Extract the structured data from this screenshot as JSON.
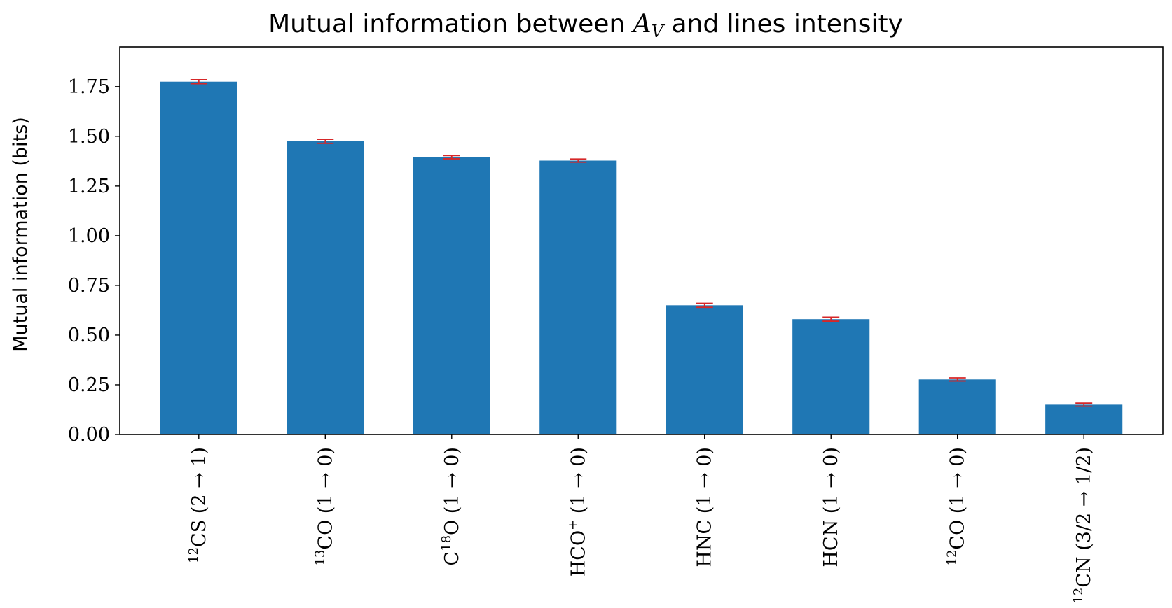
{
  "chart_data": {
    "type": "bar",
    "title": "Mutual information between A_V and lines intensity",
    "title_parts": {
      "before": "Mutual information between ",
      "symbol": "A",
      "subscript": "V",
      "after": " and lines intensity"
    },
    "xlabel": "",
    "ylabel": "Mutual information (bits)",
    "ylim": [
      0,
      1.95
    ],
    "yticks": [
      "0.00",
      "0.25",
      "0.50",
      "0.75",
      "1.00",
      "1.25",
      "1.50",
      "1.75"
    ],
    "grid": false,
    "categories": [
      "12CS (2 → 1)",
      "13CO (1 → 0)",
      "C18O (1 → 0)",
      "HCO+ (1 → 0)",
      "HNC (1 → 0)",
      "HCN (1 → 0)",
      "12CO (1 → 0)",
      "12CN (3/2 → 1/2)"
    ],
    "category_parts": [
      {
        "pre": "",
        "sup1": "12",
        "main": "CS",
        "sup2": "",
        "trans": "(2 → 1)"
      },
      {
        "pre": "",
        "sup1": "13",
        "main": "CO",
        "sup2": "",
        "trans": "(1 → 0)"
      },
      {
        "pre": "C",
        "sup1": "18",
        "main": "O",
        "sup2": "",
        "trans": "(1 → 0)"
      },
      {
        "pre": "HCO",
        "sup1": "+",
        "main": "",
        "sup2": "",
        "trans": "(1 → 0)"
      },
      {
        "pre": "HNC",
        "sup1": "",
        "main": "",
        "sup2": "",
        "trans": "(1 → 0)"
      },
      {
        "pre": "HCN",
        "sup1": "",
        "main": "",
        "sup2": "",
        "trans": "(1 → 0)"
      },
      {
        "pre": "",
        "sup1": "12",
        "main": "CO",
        "sup2": "",
        "trans": "(1 → 0)"
      },
      {
        "pre": "",
        "sup1": "12",
        "main": "CN",
        "sup2": "",
        "trans": "(3/2 → 1/2)"
      }
    ],
    "values": [
      1.775,
      1.475,
      1.395,
      1.378,
      0.65,
      0.58,
      0.277,
      0.15
    ],
    "errors": [
      0.01,
      0.01,
      0.008,
      0.008,
      0.01,
      0.01,
      0.008,
      0.008
    ],
    "colors": {
      "bar": "#1f77b4",
      "error": "#d62728",
      "axis": "#000000"
    }
  }
}
